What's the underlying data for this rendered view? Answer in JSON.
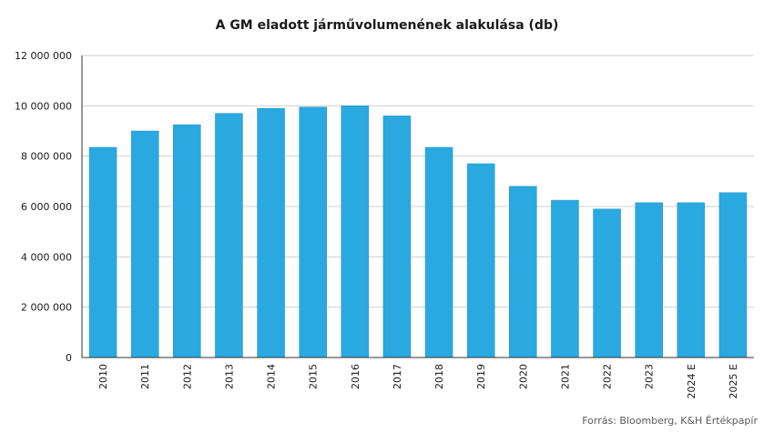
{
  "chart_data": {
    "type": "bar",
    "title": "A GM eladott járművolumenének alakulása (db)",
    "categories": [
      "2010",
      "2011",
      "2012",
      "2013",
      "2014",
      "2015",
      "2016",
      "2017",
      "2018",
      "2019",
      "2020",
      "2021",
      "2022",
      "2023",
      "2024 E",
      "2025 E"
    ],
    "values": [
      8350000,
      9000000,
      9250000,
      9700000,
      9900000,
      9950000,
      10000000,
      9600000,
      8350000,
      7700000,
      6800000,
      6250000,
      5900000,
      6150000,
      6150000,
      6550000
    ],
    "ylim": [
      0,
      12000000
    ],
    "yticks": [
      0,
      2000000,
      4000000,
      6000000,
      8000000,
      10000000,
      12000000
    ],
    "ytick_labels": [
      "0",
      "2 000 000",
      "4 000 000",
      "6 000 000",
      "8 000 000",
      "10 000 000",
      "12 000 000"
    ],
    "grid": true,
    "bar_color": "#29a9e0",
    "grid_color": "#d0d0d0",
    "source": "Forrás: Bloomberg, K&H Értékpapír"
  }
}
